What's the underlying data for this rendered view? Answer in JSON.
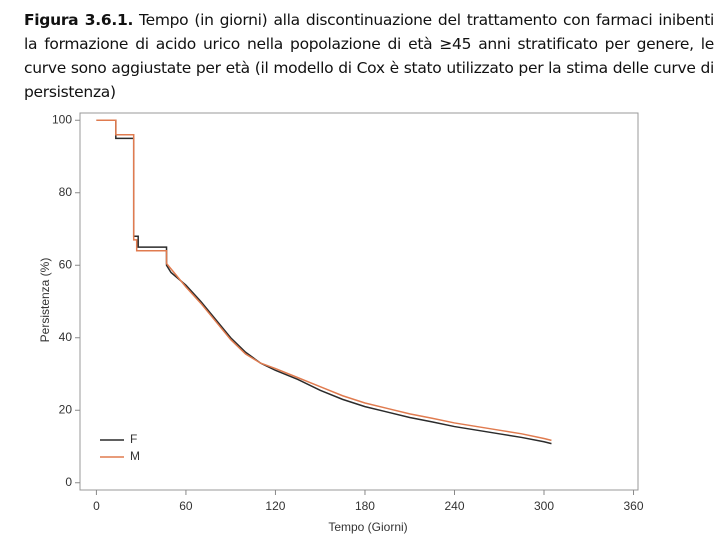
{
  "chart_data": {
    "type": "line",
    "caption_label": "Figura 3.6.1.",
    "caption": "Tempo (in giorni) alla discontinuazione del trattamento con farmaci inibenti la formazione di acido urico nella popolazione di età ≥45 anni stratificato per genere, le curve sono aggiustate per età (il modello di Cox è stato utilizzato per la stima delle curve di persistenza)",
    "xlabel": "Tempo (Giorni)",
    "ylabel": "Persistenza (%)",
    "xlim": [
      -11,
      363
    ],
    "ylim": [
      -2,
      102
    ],
    "xticks": [
      0,
      60,
      120,
      180,
      240,
      300,
      360
    ],
    "yticks": [
      0,
      20,
      40,
      60,
      80,
      100
    ],
    "legend": "lower left",
    "series": [
      {
        "name": "F",
        "color": "#2b2b2b",
        "x": [
          0,
          13,
          13,
          25,
          25,
          28,
          28,
          47,
          47,
          50,
          60,
          70,
          80,
          90,
          100,
          110,
          120,
          135,
          150,
          165,
          180,
          195,
          210,
          225,
          240,
          255,
          270,
          285,
          300,
          305
        ],
        "values": [
          100,
          100,
          95,
          95,
          68,
          68,
          65,
          65,
          60,
          58,
          54.5,
          50,
          45,
          40,
          36,
          33,
          31,
          28.5,
          25.5,
          23,
          21,
          19.5,
          18,
          16.8,
          15.5,
          14.5,
          13.5,
          12.5,
          11.3,
          10.8
        ]
      },
      {
        "name": "M",
        "color": "#e07b4f",
        "x": [
          0,
          13,
          13,
          25,
          25,
          27,
          27,
          47,
          47,
          50,
          60,
          70,
          80,
          90,
          100,
          110,
          120,
          135,
          150,
          165,
          180,
          195,
          210,
          225,
          240,
          255,
          270,
          285,
          300,
          305
        ],
        "values": [
          100,
          100,
          96,
          96,
          67,
          67,
          64,
          64,
          60.5,
          59,
          54,
          49.5,
          44.5,
          39.5,
          35.5,
          33,
          31.5,
          29,
          26.5,
          24,
          22,
          20.5,
          19,
          17.8,
          16.5,
          15.5,
          14.5,
          13.5,
          12.2,
          11.7
        ]
      }
    ]
  }
}
